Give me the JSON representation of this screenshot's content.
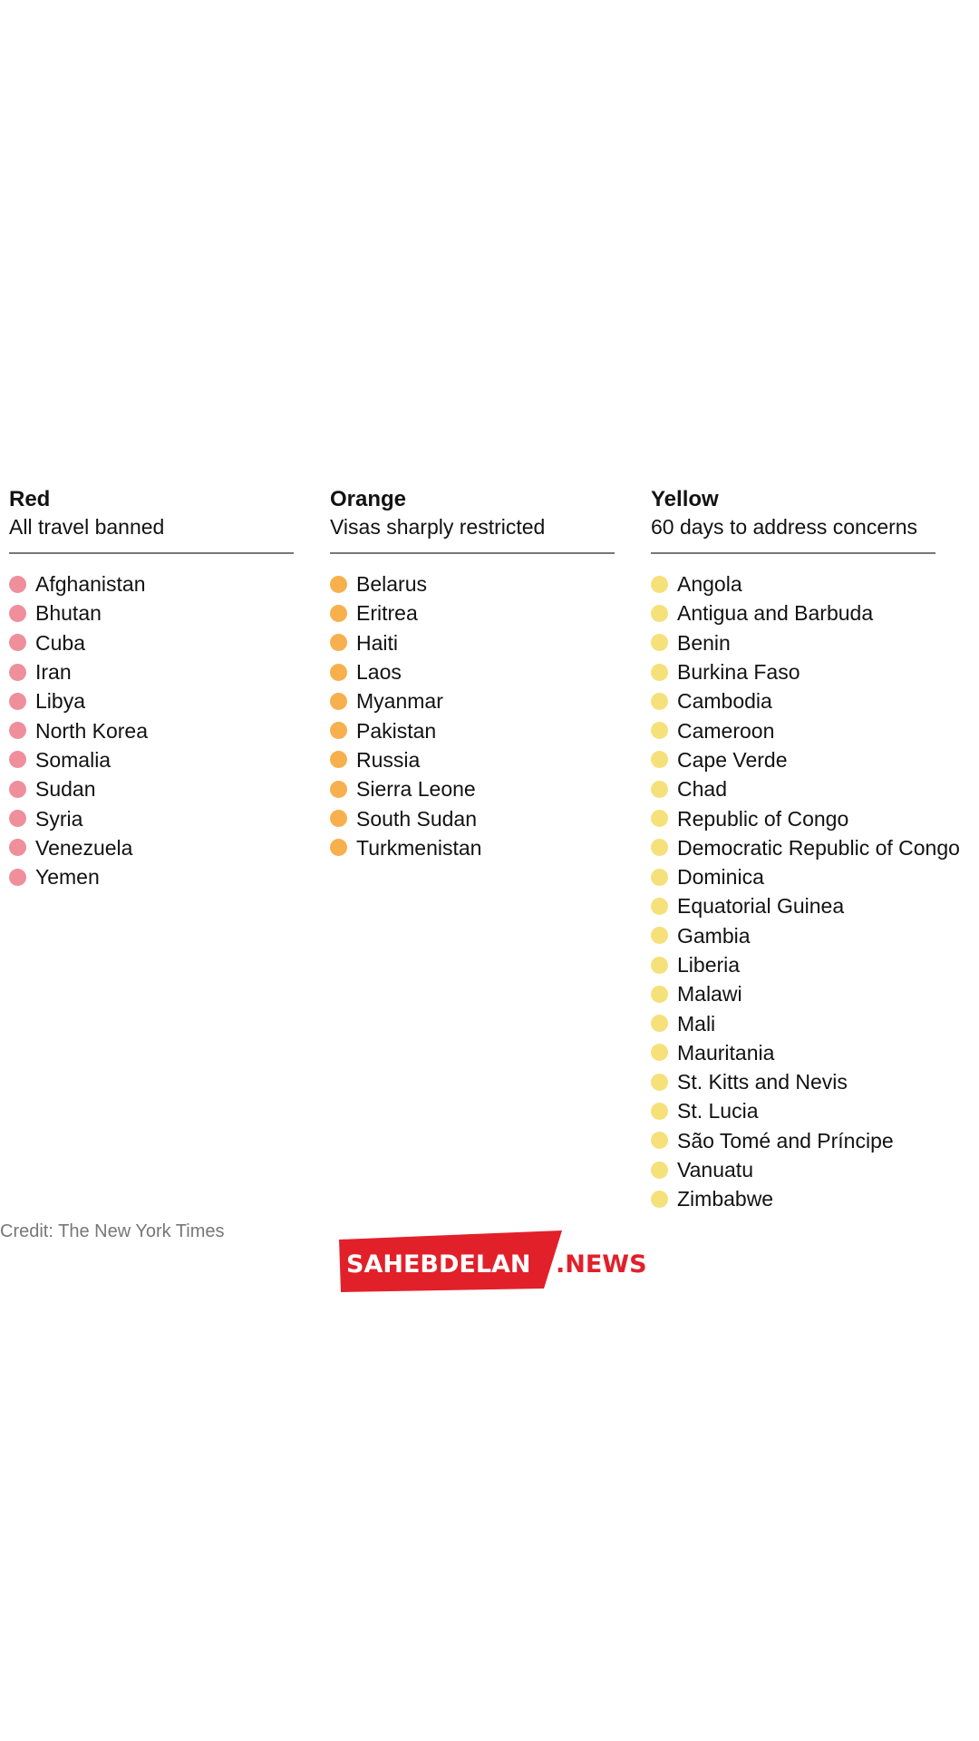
{
  "columns": [
    {
      "title": "Red",
      "subtitle": "All travel banned",
      "dot_color": "#ef8f9b",
      "countries": [
        "Afghanistan",
        "Bhutan",
        "Cuba",
        "Iran",
        "Libya",
        "North Korea",
        "Somalia",
        "Sudan",
        "Syria",
        "Venezuela",
        "Yemen"
      ]
    },
    {
      "title": "Orange",
      "subtitle": "Visas sharply restricted",
      "dot_color": "#f7b04d",
      "countries": [
        "Belarus",
        "Eritrea",
        "Haiti",
        "Laos",
        "Myanmar",
        "Pakistan",
        "Russia",
        "Sierra Leone",
        "South Sudan",
        "Turkmenistan"
      ]
    },
    {
      "title": "Yellow",
      "subtitle": "60 days to address concerns",
      "dot_color": "#f6e07a",
      "countries": [
        "Angola",
        "Antigua and Barbuda",
        "Benin",
        "Burkina Faso",
        "Cambodia",
        "Cameroon",
        "Cape Verde",
        "Chad",
        "Republic of Congo",
        "Democratic Republic of Congo",
        "Dominica",
        "Equatorial Guinea",
        "Gambia",
        "Liberia",
        "Malawi",
        "Mali",
        "Mauritania",
        "St. Kitts and Nevis",
        "St. Lucia",
        "São Tomé and Príncipe",
        "Vanuatu",
        "Zimbabwe"
      ]
    }
  ],
  "credit": "Credit: The New York Times",
  "watermark": {
    "brand": "SAHEBDELAN",
    "suffix": ".NEWS",
    "bg_color": "#e2202a",
    "text_color": "#ffffff"
  }
}
